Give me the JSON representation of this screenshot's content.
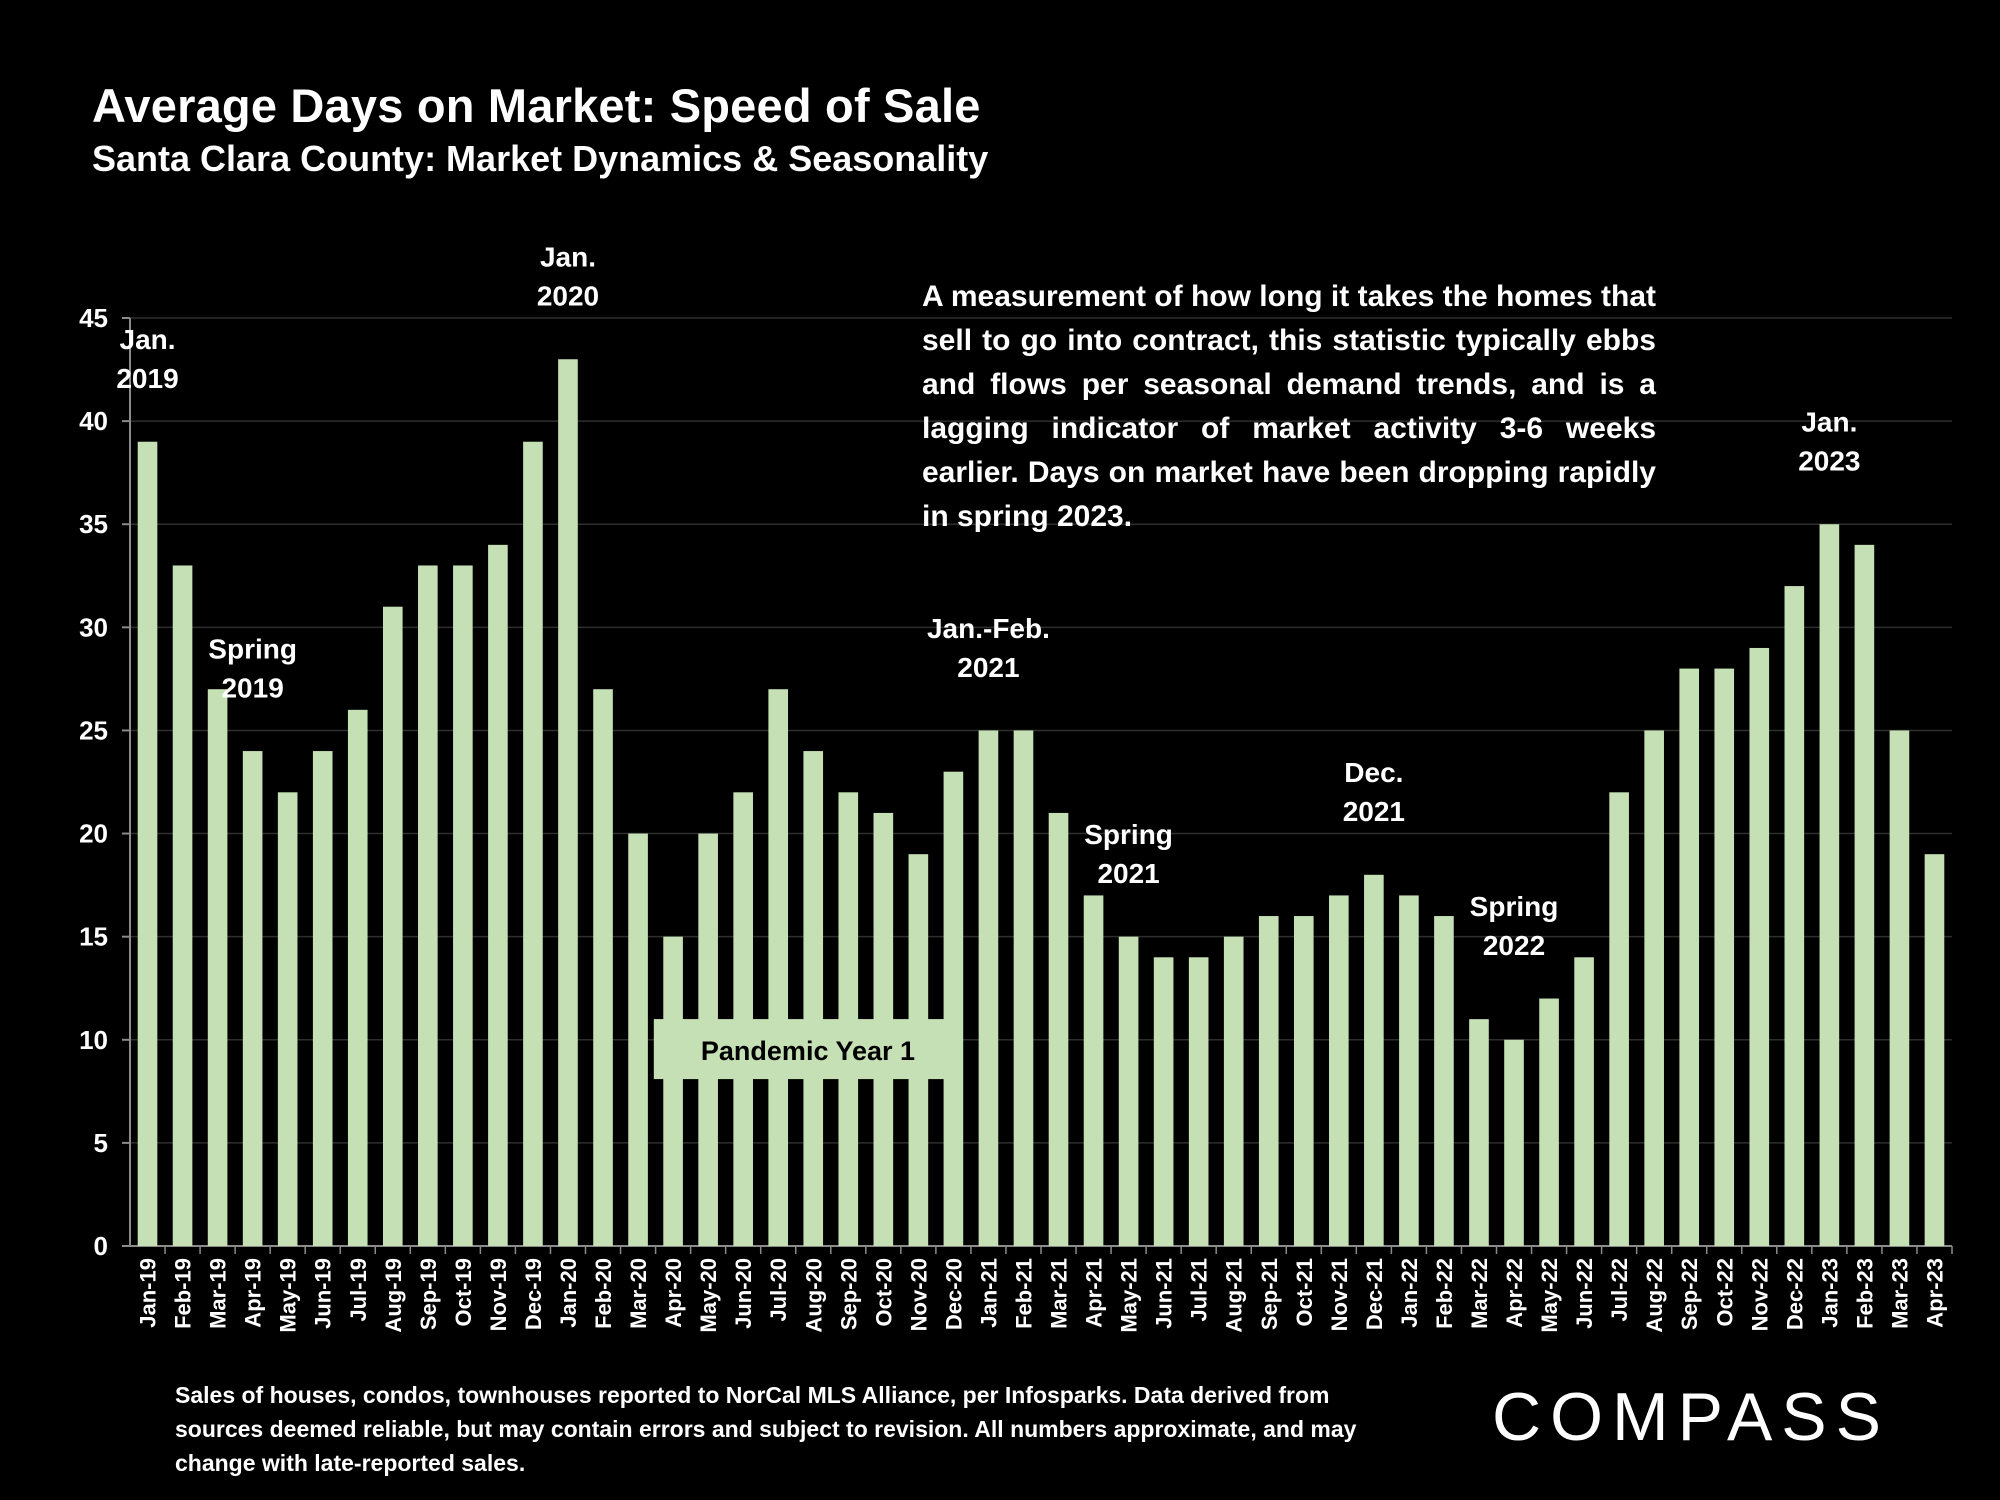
{
  "header": {
    "title": "Average Days on Market: Speed of Sale",
    "subtitle": "Santa Clara County: Market Dynamics & Seasonality"
  },
  "description": "A measurement of how long it takes the homes that sell to go into contract, this statistic typically ebbs and flows per seasonal demand trends, and is a lagging indicator of market activity 3-6 weeks earlier. Days on market have been dropping rapidly in spring 2023.",
  "footnote": "Sales of houses, condos, townhouses reported to NorCal MLS Alliance, per Infosparks. Data derived from sources deemed reliable, but may contain errors and subject to revision. All numbers approximate, and may change with late-reported sales.",
  "logo": {
    "text": "COMPASS"
  },
  "colors": {
    "background": "#000000",
    "bar": "#c5e0b4",
    "text": "#ffffff",
    "grid": "#2e2e2e"
  },
  "chart_data": {
    "type": "bar",
    "title": "Average Days on Market: Speed of Sale",
    "subtitle": "Santa Clara County: Market Dynamics & Seasonality",
    "xlabel": "",
    "ylabel": "",
    "ylim": [
      0,
      45
    ],
    "yticks": [
      0,
      5,
      10,
      15,
      20,
      25,
      30,
      35,
      40,
      45
    ],
    "grid": true,
    "legend": "none",
    "categories": [
      "Jan-19",
      "Feb-19",
      "Mar-19",
      "Apr-19",
      "May-19",
      "Jun-19",
      "Jul-19",
      "Aug-19",
      "Sep-19",
      "Oct-19",
      "Nov-19",
      "Dec-19",
      "Jan-20",
      "Feb-20",
      "Mar-20",
      "Apr-20",
      "May-20",
      "Jun-20",
      "Jul-20",
      "Aug-20",
      "Sep-20",
      "Oct-20",
      "Nov-20",
      "Dec-20",
      "Jan-21",
      "Feb-21",
      "Mar-21",
      "Apr-21",
      "May-21",
      "Jun-21",
      "Jul-21",
      "Aug-21",
      "Sep-21",
      "Oct-21",
      "Nov-21",
      "Dec-21",
      "Jan-22",
      "Feb-22",
      "Mar-22",
      "Apr-22",
      "May-22",
      "Jun-22",
      "Jul-22",
      "Aug-22",
      "Sep-22",
      "Oct-22",
      "Nov-22",
      "Dec-22",
      "Jan-23",
      "Feb-23",
      "Mar-23",
      "Apr-23"
    ],
    "values": [
      39,
      33,
      27,
      24,
      22,
      24,
      26,
      31,
      33,
      33,
      34,
      39,
      43,
      27,
      20,
      15,
      20,
      22,
      27,
      24,
      22,
      21,
      19,
      23,
      25,
      25,
      21,
      17,
      15,
      14,
      14,
      15,
      16,
      16,
      17,
      18,
      17,
      16,
      11,
      10,
      12,
      14,
      22,
      25,
      28,
      28,
      29,
      32,
      35,
      34,
      25,
      19
    ],
    "annotations": [
      {
        "lines": [
          "Jan.",
          "2019"
        ],
        "category": "Jan-19",
        "value": 41.6
      },
      {
        "lines": [
          "Jan.",
          "2020"
        ],
        "category": "Jan-20",
        "value": 45.6
      },
      {
        "lines": [
          "Spring",
          "2019"
        ],
        "category": "Apr-19",
        "value": 26.6
      },
      {
        "lines": [
          "Jan.-Feb.",
          "2021"
        ],
        "category": "Jan-21",
        "value": 27.6
      },
      {
        "lines": [
          "Spring",
          "2021"
        ],
        "category": "May-21",
        "value": 17.6
      },
      {
        "lines": [
          "Dec.",
          "2021"
        ],
        "category": "Dec-21",
        "value": 20.6
      },
      {
        "lines": [
          "Spring",
          "2022"
        ],
        "category": "Apr-22",
        "value": 14.1
      },
      {
        "lines": [
          "Jan.",
          "2023"
        ],
        "category": "Jan-23",
        "value": 37.6
      }
    ],
    "callout": {
      "text": "Pandemic Year 1",
      "from_category": "Apr-20",
      "to_category": "Dec-20",
      "value": 9.5
    }
  }
}
